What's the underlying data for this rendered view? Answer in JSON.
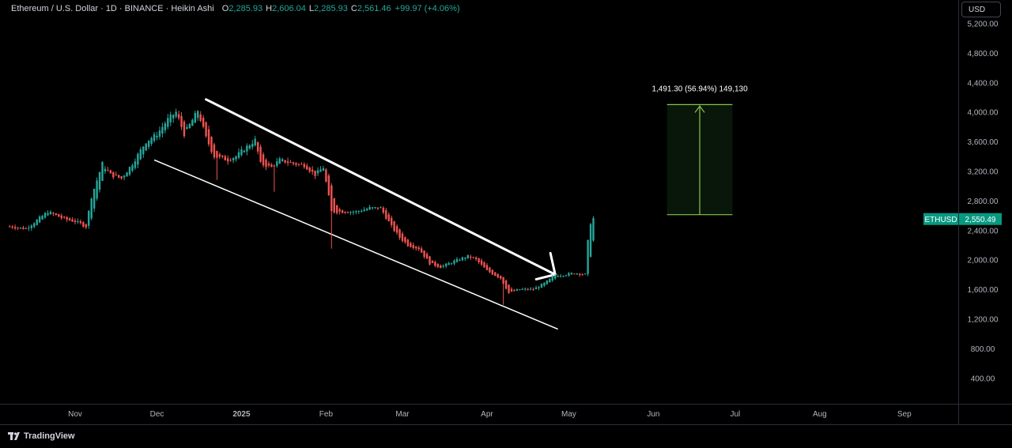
{
  "header": {
    "title": "Ethereum / U.S. Dollar · 1D · BINANCE · Heikin Ashi",
    "o_label": "O",
    "o_value": "2,285.93",
    "h_label": "H",
    "h_value": "2,606.04",
    "l_label": "L",
    "l_value": "2,285.93",
    "c_label": "C",
    "c_value": "2,561.46",
    "change": "+99.97 (+4.06%)"
  },
  "currency_button": "USD",
  "brand": "TradingView",
  "colors": {
    "up": "#26a69a",
    "down": "#ef5350",
    "accent": "#089981",
    "measure": "#8bc34a"
  },
  "chart_data": {
    "type": "candlestick",
    "style": "Heikin Ashi",
    "symbol": "ETHUSD",
    "last_price": 2550.49,
    "last_price_label": "2,550.49",
    "ylim": [
      200,
      5200
    ],
    "y_ticks": [
      400,
      800,
      1200,
      1600,
      2000,
      2400,
      2800,
      3200,
      3600,
      4000,
      4400,
      4800,
      5200
    ],
    "y_tick_labels": [
      "400.00",
      "800.00",
      "1,200.00",
      "1,600.00",
      "2,000.00",
      "2,400.00",
      "2,800.00",
      "3,200.00",
      "3,600.00",
      "4,000.00",
      "4,400.00",
      "4,800.00",
      "5,200.00"
    ],
    "x_ticks": [
      {
        "label": "Nov",
        "date": "2024-11-01"
      },
      {
        "label": "Dec",
        "date": "2024-12-01"
      },
      {
        "label": "2025",
        "date": "2025-01-01"
      },
      {
        "label": "Feb",
        "date": "2025-02-01"
      },
      {
        "label": "Mar",
        "date": "2025-03-01"
      },
      {
        "label": "Apr",
        "date": "2025-04-01"
      },
      {
        "label": "May",
        "date": "2025-05-01"
      },
      {
        "label": "Jun",
        "date": "2025-06-01"
      },
      {
        "label": "Jul",
        "date": "2025-07-01"
      },
      {
        "label": "Aug",
        "date": "2025-08-01"
      },
      {
        "label": "Sep",
        "date": "2025-09-01"
      }
    ],
    "series_path": [
      [
        "2024-10-08",
        2450
      ],
      [
        "2024-10-14",
        2420
      ],
      [
        "2024-10-22",
        2650
      ],
      [
        "2024-10-28",
        2550
      ],
      [
        "2024-11-01",
        2520
      ],
      [
        "2024-11-05",
        2450
      ],
      [
        "2024-11-07",
        2850
      ],
      [
        "2024-11-11",
        3300
      ],
      [
        "2024-11-14",
        3150
      ],
      [
        "2024-11-18",
        3100
      ],
      [
        "2024-11-22",
        3300
      ],
      [
        "2024-11-27",
        3600
      ],
      [
        "2024-12-01",
        3700
      ],
      [
        "2024-12-05",
        3900
      ],
      [
        "2024-12-08",
        4000
      ],
      [
        "2024-12-11",
        3700
      ],
      [
        "2024-12-16",
        4020
      ],
      [
        "2024-12-19",
        3650
      ],
      [
        "2024-12-22",
        3400
      ],
      [
        "2024-12-27",
        3350
      ],
      [
        "2024-12-30",
        3400
      ],
      [
        "2025-01-02",
        3500
      ],
      [
        "2025-01-06",
        3620
      ],
      [
        "2025-01-08",
        3300
      ],
      [
        "2025-01-12",
        3250
      ],
      [
        "2025-01-15",
        3350
      ],
      [
        "2025-01-20",
        3300
      ],
      [
        "2025-01-24",
        3280
      ],
      [
        "2025-01-28",
        3150
      ],
      [
        "2025-01-31",
        3250
      ],
      [
        "2025-02-03",
        2650
      ],
      [
        "2025-02-08",
        2650
      ],
      [
        "2025-02-12",
        2650
      ],
      [
        "2025-02-17",
        2700
      ],
      [
        "2025-02-21",
        2700
      ],
      [
        "2025-02-25",
        2450
      ],
      [
        "2025-02-28",
        2300
      ],
      [
        "2025-03-03",
        2200
      ],
      [
        "2025-03-07",
        2150
      ],
      [
        "2025-03-11",
        1950
      ],
      [
        "2025-03-15",
        1900
      ],
      [
        "2025-03-20",
        1980
      ],
      [
        "2025-03-25",
        2050
      ],
      [
        "2025-03-28",
        2000
      ],
      [
        "2025-04-01",
        1850
      ],
      [
        "2025-04-06",
        1750
      ],
      [
        "2025-04-09",
        1550
      ],
      [
        "2025-04-13",
        1600
      ],
      [
        "2025-04-18",
        1600
      ],
      [
        "2025-04-22",
        1680
      ],
      [
        "2025-04-26",
        1790
      ],
      [
        "2025-04-30",
        1800
      ],
      [
        "2025-05-03",
        1820
      ],
      [
        "2025-05-07",
        1800
      ],
      [
        "2025-05-08",
        2250
      ],
      [
        "2025-05-09",
        2500
      ],
      [
        "2025-05-10",
        2561
      ]
    ],
    "channel_upper": {
      "from": {
        "date": "2024-12-19",
        "price": 4170
      },
      "to": {
        "date": "2025-04-26",
        "price": 1800
      }
    },
    "channel_lower": {
      "from": {
        "date": "2024-11-30",
        "price": 3350
      },
      "to": {
        "date": "2025-04-27",
        "price": 1060
      }
    },
    "breakout_arrow": {
      "from": {
        "date": "2025-04-05",
        "price": 1850
      },
      "to": {
        "date": "2025-04-27",
        "price": 1840
      }
    },
    "measure": {
      "start_date": "2025-06-06",
      "end_date": "2025-06-30",
      "low": 2610,
      "high": 4100,
      "label": "1,491.30 (56.94%) 149,130"
    }
  }
}
